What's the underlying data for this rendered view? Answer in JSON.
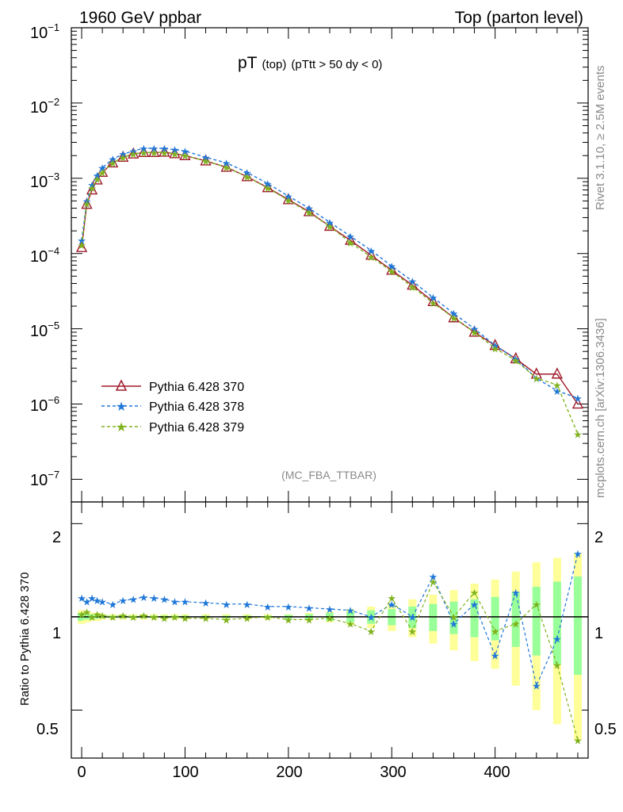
{
  "header": {
    "left_title": "1960 GeV ppbar",
    "right_title": "Top (parton level)"
  },
  "plot_title": {
    "main": "pT",
    "sub1": "(top)",
    "sub2": "(pTtt > 50 dy < 0)"
  },
  "analysis_label": "(MC_FBA_TTBAR)",
  "side_text": {
    "rivet": "Rivet 3.1.10, ≥ 2.5M events",
    "mcplots": "mcplots.cern.ch [arXiv:1306.3436]"
  },
  "ratio_ylabel": "Ratio to Pythia 6.428 370",
  "colors": {
    "s370": "#a01c2c",
    "s378": "#1f77d8",
    "s379": "#7fb21e",
    "band_yellow": "#ffff99",
    "band_green": "#99ff99"
  },
  "chart_data": [
    {
      "type": "line",
      "yscale": "log",
      "xlim": [
        -10,
        490
      ],
      "ylim": [
        5e-08,
        0.1
      ],
      "ytick_labels": [
        {
          "base": "10",
          "exp": "−1"
        },
        {
          "base": "10",
          "exp": "−2"
        },
        {
          "base": "10",
          "exp": "−3"
        },
        {
          "base": "10",
          "exp": "−4"
        },
        {
          "base": "10",
          "exp": "−5"
        },
        {
          "base": "10",
          "exp": "−6"
        },
        {
          "base": "10",
          "exp": "−7"
        }
      ],
      "legend": [
        {
          "name": "Pythia 6.428 370",
          "marker": "triangle",
          "style": "solid"
        },
        {
          "name": "Pythia 6.428 378",
          "marker": "star",
          "style": "dashed"
        },
        {
          "name": "Pythia 6.428 379",
          "marker": "star",
          "style": "dashed"
        }
      ],
      "legend_position": "bottom-left",
      "x": [
        0,
        5,
        10,
        15,
        20,
        30,
        40,
        50,
        60,
        70,
        80,
        90,
        100,
        120,
        140,
        160,
        180,
        200,
        220,
        240,
        260,
        280,
        300,
        320,
        340,
        360,
        380,
        400,
        420,
        440,
        460,
        480
      ],
      "series": [
        {
          "name": "Pythia 6.428 370",
          "values": [
            0.00012,
            0.00045,
            0.0007,
            0.00095,
            0.0012,
            0.0016,
            0.0019,
            0.0021,
            0.0022,
            0.0022,
            0.00222,
            0.00212,
            0.002,
            0.0017,
            0.0014,
            0.00105,
            0.00075,
            0.00052,
            0.00036,
            0.00023,
            0.00015,
            9.5e-05,
            6e-05,
            3.8e-05,
            2.3e-05,
            1.4e-05,
            9e-06,
            6e-06,
            4e-06,
            2.5e-06,
            2.5e-06,
            1e-06
          ]
        },
        {
          "name": "Pythia 6.428 378",
          "values": [
            0.00015,
            0.0005,
            0.00082,
            0.0011,
            0.00138,
            0.0018,
            0.0021,
            0.0023,
            0.0025,
            0.0025,
            0.0025,
            0.0024,
            0.0023,
            0.0019,
            0.0016,
            0.0012,
            0.00085,
            0.00058,
            0.0004,
            0.00026,
            0.00017,
            0.00011,
            6.8e-05,
            4.3e-05,
            2.6e-05,
            1.6e-05,
            1e-05,
            6e-06,
            4e-06,
            2.2e-06,
            1.5e-06,
            1.2e-06
          ]
        },
        {
          "name": "Pythia 6.428 379",
          "values": [
            0.00013,
            0.00046,
            0.00074,
            0.00097,
            0.0012,
            0.0016,
            0.0019,
            0.0021,
            0.0022,
            0.0022,
            0.0022,
            0.0021,
            0.002,
            0.0017,
            0.0014,
            0.00105,
            0.00074,
            0.00051,
            0.00035,
            0.00023,
            0.00014,
            9e-05,
            5.8e-05,
            3.6e-05,
            2.2e-05,
            1.4e-05,
            9e-06,
            5.5e-06,
            3.8e-06,
            2.2e-06,
            1.8e-06,
            4e-07
          ]
        }
      ]
    },
    {
      "type": "line",
      "xlim": [
        -10,
        490
      ],
      "ylim": [
        0.35,
        2.35
      ],
      "xtick_labels": [
        "0",
        "100",
        "200",
        "300",
        "400"
      ],
      "ytick_labels": [
        "2",
        "1",
        "0.5"
      ],
      "reference_line": 1,
      "x": [
        0,
        5,
        10,
        15,
        20,
        30,
        40,
        50,
        60,
        70,
        80,
        90,
        100,
        120,
        140,
        160,
        180,
        200,
        220,
        240,
        260,
        280,
        300,
        320,
        340,
        360,
        380,
        400,
        420,
        440,
        460,
        480
      ],
      "series": [
        {
          "name": "Pythia 6.428 378",
          "values": [
            1.15,
            1.12,
            1.15,
            1.13,
            1.12,
            1.1,
            1.13,
            1.14,
            1.16,
            1.15,
            1.14,
            1.12,
            1.12,
            1.11,
            1.1,
            1.1,
            1.08,
            1.08,
            1.07,
            1.06,
            1.05,
            1.0,
            1.1,
            1.0,
            1.35,
            0.95,
            1.1,
            0.75,
            1.2,
            0.6,
            0.85,
            1.6
          ]
        },
        {
          "name": "Pythia 6.428 379",
          "values": [
            1.02,
            1.04,
            1.0,
            1.02,
            1.01,
            1.0,
            1.01,
            1.0,
            1.01,
            1.0,
            0.99,
            1.0,
            0.99,
            0.99,
            0.98,
            0.99,
            1.0,
            0.98,
            0.98,
            0.99,
            0.95,
            0.9,
            1.15,
            0.9,
            1.3,
            1.0,
            1.2,
            0.9,
            0.95,
            1.1,
            0.7,
            0.4
          ]
        }
      ],
      "band_relative_error_yellow": [
        0.05,
        0.04,
        0.03,
        0.03,
        0.02,
        0.02,
        0.02,
        0.02,
        0.02,
        0.02,
        0.02,
        0.02,
        0.02,
        0.02,
        0.02,
        0.02,
        0.02,
        0.02,
        0.03,
        0.04,
        0.06,
        0.08,
        0.1,
        0.14,
        0.18,
        0.22,
        0.28,
        0.32,
        0.4,
        0.5,
        0.55,
        0.6
      ],
      "band_relative_error_green": [
        0.03,
        0.02,
        0.02,
        0.015,
        0.01,
        0.01,
        0.01,
        0.01,
        0.01,
        0.01,
        0.01,
        0.01,
        0.01,
        0.01,
        0.01,
        0.01,
        0.01,
        0.015,
        0.02,
        0.03,
        0.04,
        0.05,
        0.06,
        0.08,
        0.1,
        0.12,
        0.14,
        0.16,
        0.2,
        0.25,
        0.3,
        0.35
      ]
    }
  ]
}
